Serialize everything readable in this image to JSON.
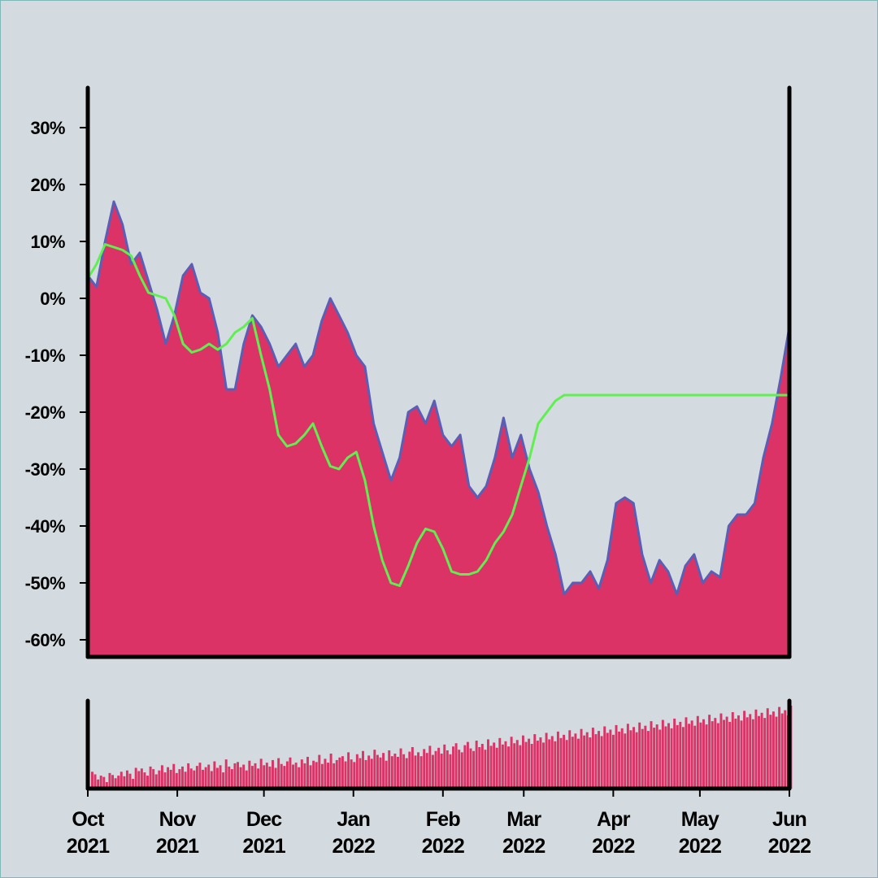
{
  "chart_data": [
    {
      "type": "area",
      "title": "",
      "xlabel": "",
      "ylabel": "",
      "xlim": [
        "2021-10-01",
        "2022-06-01"
      ],
      "ylim": [
        -63,
        37
      ],
      "yticks": [
        30,
        20,
        10,
        0,
        -10,
        -20,
        -30,
        -40,
        -50,
        -60
      ],
      "ytick_labels": [
        "30%",
        "20%",
        "10%",
        "0%",
        "-10%",
        "-20%",
        "-30%",
        "-40%",
        "-50%",
        "-60%"
      ],
      "grid": false,
      "colors": {
        "fill": "#dc3366",
        "line": "#5a5fb5",
        "moving_average": "#5ff050"
      },
      "series": [
        {
          "kind": "area",
          "x": [
            "2021-10-01",
            "2021-10-04",
            "2021-10-07",
            "2021-10-10",
            "2021-10-13",
            "2021-10-16",
            "2021-10-19",
            "2021-10-22",
            "2021-10-25",
            "2021-10-28",
            "2021-10-31",
            "2021-11-03",
            "2021-11-06",
            "2021-11-09",
            "2021-11-12",
            "2021-11-15",
            "2021-11-18",
            "2021-11-21",
            "2021-11-24",
            "2021-11-27",
            "2021-11-30",
            "2021-12-03",
            "2021-12-06",
            "2021-12-09",
            "2021-12-12",
            "2021-12-15",
            "2021-12-18",
            "2021-12-21",
            "2021-12-24",
            "2021-12-27",
            "2021-12-30",
            "2022-01-02",
            "2022-01-05",
            "2022-01-08",
            "2022-01-11",
            "2022-01-14",
            "2022-01-17",
            "2022-01-20",
            "2022-01-23",
            "2022-01-26",
            "2022-01-29",
            "2022-02-01",
            "2022-02-04",
            "2022-02-07",
            "2022-02-10",
            "2022-02-13",
            "2022-02-16",
            "2022-02-19",
            "2022-02-22",
            "2022-02-25",
            "2022-02-28",
            "2022-03-03",
            "2022-03-06",
            "2022-03-09",
            "2022-03-12",
            "2022-03-15",
            "2022-03-18",
            "2022-03-21",
            "2022-03-24",
            "2022-03-27",
            "2022-03-30",
            "2022-04-02",
            "2022-04-05",
            "2022-04-08",
            "2022-04-11",
            "2022-04-14",
            "2022-04-17",
            "2022-04-20",
            "2022-04-23",
            "2022-04-26",
            "2022-04-29",
            "2022-05-02",
            "2022-05-05",
            "2022-05-08",
            "2022-05-11",
            "2022-05-14",
            "2022-05-17",
            "2022-05-20",
            "2022-05-23",
            "2022-05-26",
            "2022-05-29",
            "2022-06-01"
          ],
          "values": [
            4,
            2,
            10,
            17,
            13,
            6,
            8,
            3,
            -2,
            -8,
            -3,
            4,
            6,
            1,
            0,
            -6,
            -16,
            -16,
            -8,
            -3,
            -5,
            -8,
            -12,
            -10,
            -8,
            -12,
            -10,
            -4,
            0,
            -3,
            -6,
            -10,
            -12,
            -22,
            -27,
            -32,
            -28,
            -20,
            -19,
            -22,
            -18,
            -24,
            -26,
            -24,
            -33,
            -35,
            -33,
            -28,
            -21,
            -28,
            -24,
            -30,
            -34,
            -40,
            -45,
            -52,
            -50,
            -50,
            -48,
            -51,
            -46,
            -36,
            -35,
            -36,
            -45,
            -50,
            -46,
            -48,
            -52,
            -47,
            -45,
            -50,
            -48,
            -49,
            -40,
            -38,
            -38,
            -36,
            -28,
            -22,
            -14,
            -5
          ],
          "ma": [
            3.5,
            6,
            9.5,
            9,
            8.5,
            7.5,
            4,
            1,
            0.5,
            0,
            -3,
            -8,
            -9.5,
            -9,
            -8,
            -9,
            -8,
            -6,
            -5,
            -3.5,
            -10,
            -16,
            -24,
            -26,
            -25.5,
            -24,
            -22,
            -26,
            -29.5,
            -30,
            -28,
            -27,
            -32,
            -40,
            -46,
            -50,
            -50.5,
            -47,
            -43,
            -40.5,
            -41,
            -44,
            -48,
            -48.5,
            -48.5,
            -48,
            -46,
            -43,
            -41,
            -38,
            -33,
            -28,
            -22,
            -20,
            -18,
            -17,
            -17,
            -17,
            -17,
            -17,
            -17,
            -17,
            -17,
            -17,
            -17,
            -17,
            -17,
            -17,
            -17,
            -17,
            -17,
            -17,
            -17,
            -17,
            -17,
            -17,
            -17,
            -17,
            -17,
            -17,
            -17,
            -17
          ]
        }
      ]
    },
    {
      "type": "bar",
      "title": "",
      "xlabel": "",
      "ylabel": "",
      "x_tick_labels": [
        {
          "month": "Oct",
          "year": "2021"
        },
        {
          "month": "Nov",
          "year": "2021"
        },
        {
          "month": "Dec",
          "year": "2021"
        },
        {
          "month": "Jan",
          "year": "2022"
        },
        {
          "month": "Feb",
          "year": "2022"
        },
        {
          "month": "Mar",
          "year": "2022"
        },
        {
          "month": "Apr",
          "year": "2022"
        },
        {
          "month": "May",
          "year": "2022"
        },
        {
          "month": "Jun",
          "year": "2022"
        }
      ],
      "colors": {
        "bar": "#dc3366"
      },
      "values_daily": [
        2.6,
        2.2,
        1.4,
        2.0,
        1.8,
        1.0,
        2.4,
        2.1,
        1.6,
        2.0,
        2.6,
        1.9,
        2.8,
        2.3,
        1.5,
        3.2,
        2.7,
        3.1,
        2.5,
        2.0,
        3.4,
        3.0,
        2.2,
        2.8,
        3.6,
        2.5,
        3.3,
        2.9,
        3.8,
        2.4,
        3.0,
        3.4,
        2.6,
        3.9,
        3.1,
        2.8,
        3.5,
        4.0,
        2.9,
        3.3,
        3.7,
        2.7,
        4.2,
        3.2,
        3.6,
        2.5,
        4.5,
        3.4,
        3.0,
        3.9,
        4.1,
        3.3,
        3.7,
        2.8,
        4.3,
        3.5,
        3.9,
        3.1,
        4.6,
        3.6,
        4.0,
        3.4,
        4.4,
        3.2,
        4.7,
        3.8,
        3.5,
        4.2,
        4.8,
        3.7,
        4.0,
        3.3,
        4.5,
        3.9,
        4.9,
        3.6,
        4.3,
        4.1,
        5.2,
        3.8,
        4.6,
        4.0,
        5.4,
        3.9,
        4.4,
        4.8,
        5.0,
        4.2,
        5.6,
        4.5,
        4.1,
        5.3,
        4.7,
        5.8,
        4.4,
        5.1,
        4.6,
        6.0,
        5.2,
        4.8,
        5.5,
        4.3,
        5.9,
        5.0,
        5.4,
        4.9,
        6.2,
        5.3,
        4.7,
        5.7,
        6.4,
        5.1,
        5.6,
        5.0,
        6.1,
        5.5,
        6.6,
        5.2,
        5.8,
        6.3,
        5.4,
        6.8,
        5.9,
        5.3,
        6.5,
        7.0,
        6.0,
        5.6,
        6.7,
        7.2,
        6.2,
        5.8,
        7.4,
        6.4,
        6.9,
        6.0,
        7.6,
        6.6,
        7.1,
        6.3,
        7.8,
        6.8,
        7.3,
        6.5,
        8.0,
        7.0,
        7.5,
        6.7,
        8.2,
        7.2,
        7.7,
        6.9,
        8.4,
        7.4,
        7.9,
        7.1,
        8.6,
        7.6,
        8.1,
        7.3,
        8.8,
        7.8,
        8.3,
        7.5,
        9.0,
        8.0,
        8.5,
        7.7,
        9.2,
        8.2,
        8.7,
        7.9,
        9.4,
        8.4,
        8.9,
        8.1,
        9.6,
        8.6,
        9.1,
        8.3,
        9.8,
        8.8,
        9.3,
        8.5,
        10.0,
        9.0,
        9.5,
        8.7,
        10.2,
        9.2,
        9.7,
        8.9,
        10.4,
        9.4,
        9.9,
        9.1,
        10.6,
        9.6,
        10.1,
        9.3,
        10.8,
        9.8,
        10.3,
        9.5,
        11.0,
        10.0,
        10.5,
        9.7,
        11.2,
        10.2,
        10.7,
        9.9,
        11.4,
        10.4,
        10.9,
        10.1,
        11.6,
        10.6,
        11.1,
        10.3,
        11.8,
        10.8,
        11.3,
        10.5,
        12.0,
        11.0,
        11.5,
        10.7,
        12.2,
        11.2,
        11.7,
        10.9,
        12.4,
        11.4,
        11.9,
        11.1,
        12.6,
        11.6,
        12.1,
        11.3,
        12.8
      ]
    }
  ]
}
